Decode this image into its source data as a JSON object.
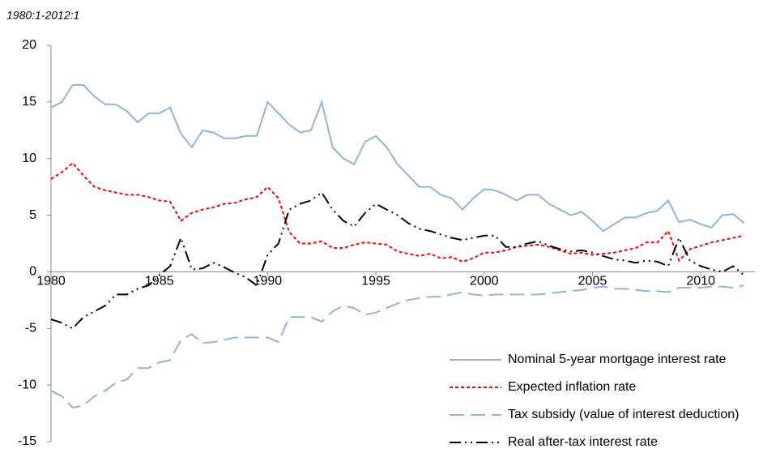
{
  "chart_data": {
    "type": "line",
    "subtitle": "1980:1-2012:1",
    "x": [
      1980,
      1980.5,
      1981,
      1981.5,
      1982,
      1982.5,
      1983,
      1983.5,
      1984,
      1984.5,
      1985,
      1985.5,
      1986,
      1986.5,
      1987,
      1987.5,
      1988,
      1988.5,
      1989,
      1989.5,
      1990,
      1990.5,
      1991,
      1991.5,
      1992,
      1992.5,
      1993,
      1993.5,
      1994,
      1994.5,
      1995,
      1995.5,
      1996,
      1996.5,
      1997,
      1997.5,
      1998,
      1998.5,
      1999,
      1999.5,
      2000,
      2000.5,
      2001,
      2001.5,
      2002,
      2002.5,
      2003,
      2003.5,
      2004,
      2004.5,
      2005,
      2005.5,
      2006,
      2006.5,
      2007,
      2007.5,
      2008,
      2008.5,
      2009,
      2009.5,
      2010,
      2010.5,
      2011,
      2011.5,
      2012
    ],
    "series": [
      {
        "name": "Nominal 5-year mortgage interest rate",
        "color": "#8db4e2",
        "dash": "solid",
        "values": [
          14.5,
          15,
          16.5,
          16.5,
          15.5,
          14.8,
          14.8,
          14.2,
          13.2,
          14,
          14,
          14.5,
          12.2,
          11,
          12.5,
          12.3,
          11.8,
          11.8,
          12,
          12,
          15,
          14,
          13,
          12.3,
          12.5,
          15,
          11,
          10,
          9.5,
          11.5,
          12,
          11,
          9.5,
          8.5,
          7.5,
          7.5,
          6.8,
          6.5,
          5.5,
          6.5,
          7.3,
          7.2,
          6.8,
          6.3,
          6.8,
          6.8,
          6,
          5.5,
          5,
          5.3,
          4.5,
          3.6,
          4.2,
          4.8,
          4.8,
          5.2,
          5.4,
          6.3,
          4.4,
          4.6,
          4.2,
          3.9,
          5,
          5.1,
          4.3
        ]
      },
      {
        "name": "Expected inflation rate",
        "color": "#ff0000",
        "dash": "short",
        "values": [
          8.2,
          8.8,
          9.6,
          8.5,
          7.5,
          7.2,
          7.0,
          6.8,
          6.8,
          6.6,
          6.3,
          6.2,
          4.5,
          5.2,
          5.5,
          5.7,
          6.0,
          6.1,
          6.4,
          6.6,
          7.5,
          6.5,
          3.5,
          2.5,
          2.5,
          2.7,
          2.1,
          2.1,
          2.4,
          2.6,
          2.5,
          2.4,
          1.8,
          1.6,
          1.4,
          1.6,
          1.2,
          1.3,
          0.9,
          1.2,
          1.7,
          1.7,
          1.9,
          2.2,
          2.3,
          2.4,
          2.2,
          1.9,
          1.6,
          1.7,
          1.5,
          1.6,
          1.7,
          1.9,
          2.1,
          2.6,
          2.6,
          3.6,
          1.0,
          2.0,
          2.3,
          2.6,
          2.8,
          3.0,
          3.2
        ]
      },
      {
        "name": "Tax subsidy (value of interest deduction)",
        "color": "#8db4e2",
        "dash": "long",
        "values": [
          -10.5,
          -11,
          -12,
          -11.8,
          -11,
          -10.5,
          -9.8,
          -9.5,
          -8.5,
          -8.5,
          -8,
          -7.8,
          -6,
          -5.5,
          -6.3,
          -6.2,
          -6,
          -5.8,
          -5.8,
          -5.8,
          -5.8,
          -6.2,
          -4,
          -4,
          -4,
          -4.4,
          -3.5,
          -3,
          -3.2,
          -3.8,
          -3.6,
          -3.2,
          -2.8,
          -2.5,
          -2.3,
          -2.2,
          -2.2,
          -2,
          -1.8,
          -2,
          -2.1,
          -2,
          -2,
          -2,
          -2,
          -2,
          -1.9,
          -1.8,
          -1.7,
          -1.6,
          -1.4,
          -1.3,
          -1.5,
          -1.5,
          -1.6,
          -1.7,
          -1.7,
          -1.8,
          -1.4,
          -1.4,
          -1.4,
          -1.3,
          -1.3,
          -1.4,
          -1.2
        ]
      },
      {
        "name": "Real after-tax interest rate",
        "color": "#000000",
        "dash": "dashdotdot",
        "values": [
          -4.2,
          -4.5,
          -5,
          -4,
          -3.5,
          -3,
          -2,
          -2,
          -1.5,
          -1.2,
          -0.3,
          0.5,
          3,
          0.2,
          0.3,
          0.8,
          0.4,
          -0.1,
          -0.5,
          -1.2,
          1.5,
          2.5,
          5.5,
          6,
          6.3,
          7,
          5.5,
          4.5,
          4,
          5.2,
          6,
          5.5,
          5,
          4.3,
          3.8,
          3.6,
          3.3,
          3.0,
          2.8,
          3.0,
          3.2,
          3.2,
          2.2,
          2.2,
          2.5,
          2.7,
          2.3,
          2.0,
          1.8,
          1.9,
          1.7,
          1.4,
          1.1,
          1.0,
          0.8,
          1.0,
          0.9,
          0.5,
          3.0,
          1.0,
          0.5,
          0.2,
          0.0,
          0.5,
          -0.3
        ]
      }
    ],
    "xlim": [
      1980,
      2012.5
    ],
    "xticks": [
      1980,
      1985,
      1990,
      1995,
      2000,
      2005,
      2010
    ],
    "ylim": [
      -15,
      20
    ],
    "yticks": [
      -15,
      -10,
      -5,
      0,
      5,
      10,
      15,
      20
    ],
    "grid": false,
    "legend": "bottom-right"
  }
}
